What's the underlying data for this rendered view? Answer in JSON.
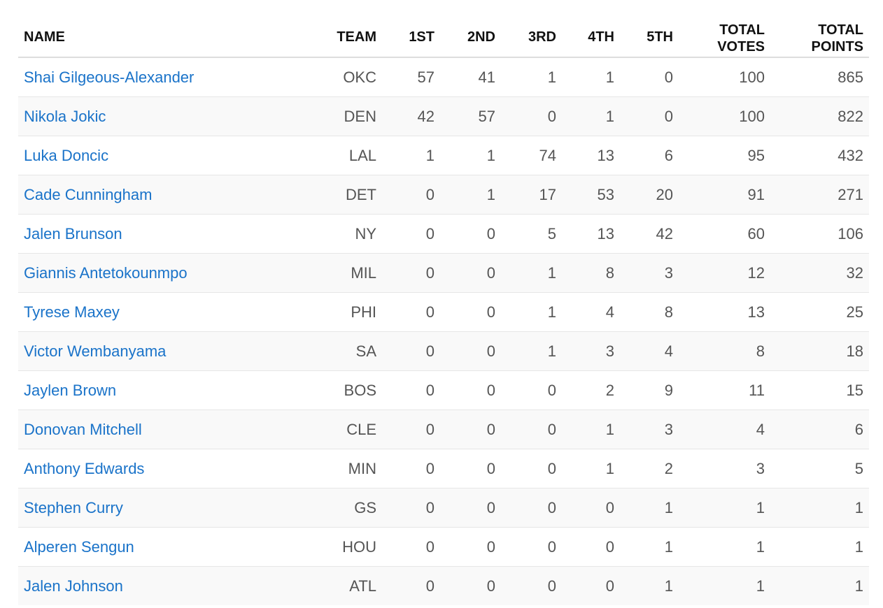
{
  "table": {
    "headers": {
      "name": "NAME",
      "team": "TEAM",
      "first": "1ST",
      "second": "2ND",
      "third": "3RD",
      "fourth": "4TH",
      "fifth": "5TH",
      "total_votes_1": "TOTAL",
      "total_votes_2": "VOTES",
      "total_points_1": "TOTAL",
      "total_points_2": "POINTS"
    },
    "rows": [
      {
        "name": "Shai Gilgeous-Alexander",
        "team": "OKC",
        "first": "57",
        "second": "41",
        "third": "1",
        "fourth": "1",
        "fifth": "0",
        "total_votes": "100",
        "total_points": "865"
      },
      {
        "name": "Nikola Jokic",
        "team": "DEN",
        "first": "42",
        "second": "57",
        "third": "0",
        "fourth": "1",
        "fifth": "0",
        "total_votes": "100",
        "total_points": "822"
      },
      {
        "name": "Luka Doncic",
        "team": "LAL",
        "first": "1",
        "second": "1",
        "third": "74",
        "fourth": "13",
        "fifth": "6",
        "total_votes": "95",
        "total_points": "432"
      },
      {
        "name": "Cade Cunningham",
        "team": "DET",
        "first": "0",
        "second": "1",
        "third": "17",
        "fourth": "53",
        "fifth": "20",
        "total_votes": "91",
        "total_points": "271"
      },
      {
        "name": "Jalen Brunson",
        "team": "NY",
        "first": "0",
        "second": "0",
        "third": "5",
        "fourth": "13",
        "fifth": "42",
        "total_votes": "60",
        "total_points": "106"
      },
      {
        "name": "Giannis Antetokounmpo",
        "team": "MIL",
        "first": "0",
        "second": "0",
        "third": "1",
        "fourth": "8",
        "fifth": "3",
        "total_votes": "12",
        "total_points": "32"
      },
      {
        "name": "Tyrese Maxey",
        "team": "PHI",
        "first": "0",
        "second": "0",
        "third": "1",
        "fourth": "4",
        "fifth": "8",
        "total_votes": "13",
        "total_points": "25"
      },
      {
        "name": "Victor Wembanyama",
        "team": "SA",
        "first": "0",
        "second": "0",
        "third": "1",
        "fourth": "3",
        "fifth": "4",
        "total_votes": "8",
        "total_points": "18"
      },
      {
        "name": "Jaylen Brown",
        "team": "BOS",
        "first": "0",
        "second": "0",
        "third": "0",
        "fourth": "2",
        "fifth": "9",
        "total_votes": "11",
        "total_points": "15"
      },
      {
        "name": "Donovan Mitchell",
        "team": "CLE",
        "first": "0",
        "second": "0",
        "third": "0",
        "fourth": "1",
        "fifth": "3",
        "total_votes": "4",
        "total_points": "6"
      },
      {
        "name": "Anthony Edwards",
        "team": "MIN",
        "first": "0",
        "second": "0",
        "third": "0",
        "fourth": "1",
        "fifth": "2",
        "total_votes": "3",
        "total_points": "5"
      },
      {
        "name": "Stephen Curry",
        "team": "GS",
        "first": "0",
        "second": "0",
        "third": "0",
        "fourth": "0",
        "fifth": "1",
        "total_votes": "1",
        "total_points": "1"
      },
      {
        "name": "Alperen Sengun",
        "team": "HOU",
        "first": "0",
        "second": "0",
        "third": "0",
        "fourth": "0",
        "fifth": "1",
        "total_votes": "1",
        "total_points": "1"
      },
      {
        "name": "Jalen Johnson",
        "team": "ATL",
        "first": "0",
        "second": "0",
        "third": "0",
        "fourth": "0",
        "fifth": "1",
        "total_votes": "1",
        "total_points": "1"
      }
    ]
  },
  "colors": {
    "link": "#1a73c9",
    "text": "#555555",
    "header_text": "#111111",
    "row_alt_bg": "#f9f9f9"
  }
}
